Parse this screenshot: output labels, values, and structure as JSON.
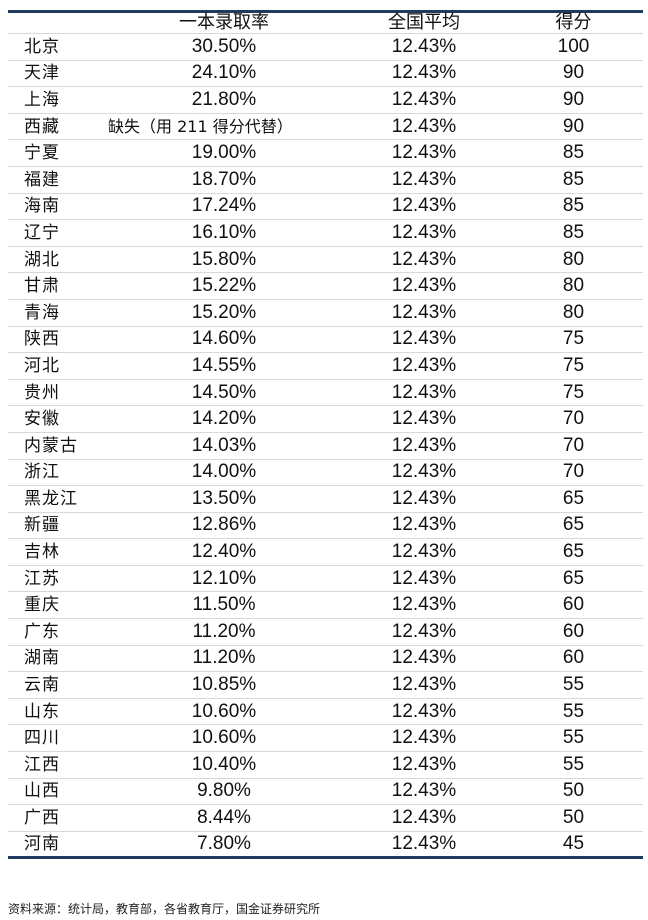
{
  "headers": [
    "",
    "一本录取率",
    "全国平均",
    "得分"
  ],
  "rows": [
    [
      "北京",
      "30.50%",
      "12.43%",
      "100"
    ],
    [
      "天津",
      "24.10%",
      "12.43%",
      "90"
    ],
    [
      "上海",
      "21.80%",
      "12.43%",
      "90"
    ],
    [
      "西藏",
      "缺失（用 211 得分代替）",
      "12.43%",
      "90"
    ],
    [
      "宁夏",
      "19.00%",
      "12.43%",
      "85"
    ],
    [
      "福建",
      "18.70%",
      "12.43%",
      "85"
    ],
    [
      "海南",
      "17.24%",
      "12.43%",
      "85"
    ],
    [
      "辽宁",
      "16.10%",
      "12.43%",
      "85"
    ],
    [
      "湖北",
      "15.80%",
      "12.43%",
      "80"
    ],
    [
      "甘肃",
      "15.22%",
      "12.43%",
      "80"
    ],
    [
      "青海",
      "15.20%",
      "12.43%",
      "80"
    ],
    [
      "陕西",
      "14.60%",
      "12.43%",
      "75"
    ],
    [
      "河北",
      "14.55%",
      "12.43%",
      "75"
    ],
    [
      "贵州",
      "14.50%",
      "12.43%",
      "75"
    ],
    [
      "安徽",
      "14.20%",
      "12.43%",
      "70"
    ],
    [
      "内蒙古",
      "14.03%",
      "12.43%",
      "70"
    ],
    [
      "浙江",
      "14.00%",
      "12.43%",
      "70"
    ],
    [
      "黑龙江",
      "13.50%",
      "12.43%",
      "65"
    ],
    [
      "新疆",
      "12.86%",
      "12.43%",
      "65"
    ],
    [
      "吉林",
      "12.40%",
      "12.43%",
      "65"
    ],
    [
      "江苏",
      "12.10%",
      "12.43%",
      "65"
    ],
    [
      "重庆",
      "11.50%",
      "12.43%",
      "60"
    ],
    [
      "广东",
      "11.20%",
      "12.43%",
      "60"
    ],
    [
      "湖南",
      "11.20%",
      "12.43%",
      "60"
    ],
    [
      "云南",
      "10.85%",
      "12.43%",
      "55"
    ],
    [
      "山东",
      "10.60%",
      "12.43%",
      "55"
    ],
    [
      "四川",
      "10.60%",
      "12.43%",
      "55"
    ],
    [
      "江西",
      "10.40%",
      "12.43%",
      "55"
    ],
    [
      "山西",
      "9.80%",
      "12.43%",
      "50"
    ],
    [
      "广西",
      "8.44%",
      "12.43%",
      "50"
    ],
    [
      "河南",
      "7.80%",
      "12.43%",
      "45"
    ]
  ],
  "source": "资料来源：统计局，教育部，各省教育厅，国金证券研究所",
  "colors": {
    "rule": "#1f3a5f",
    "grid": "#d8d8d8"
  }
}
